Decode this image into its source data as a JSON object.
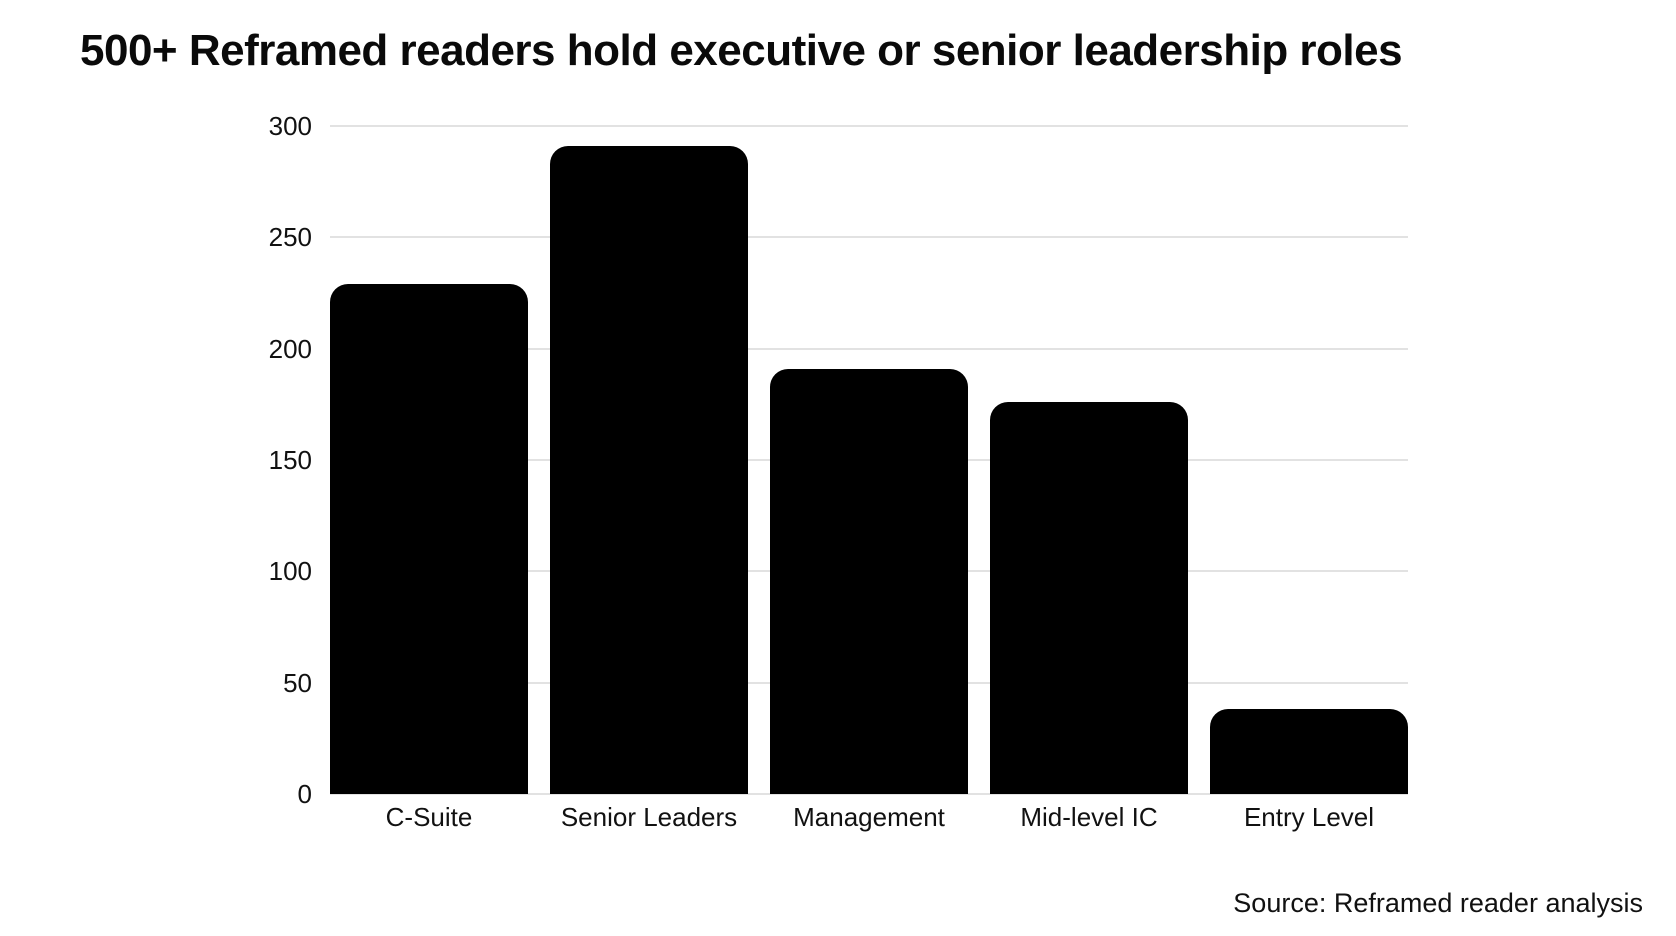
{
  "chart_data": {
    "type": "bar",
    "title": "500+ Reframed readers hold executive or senior leadership roles",
    "categories": [
      "C-Suite",
      "Senior Leaders",
      "Management",
      "Mid-level IC",
      "Entry Level"
    ],
    "values": [
      229,
      291,
      191,
      176,
      38
    ],
    "xlabel": "",
    "ylabel": "",
    "ylim": [
      0,
      300
    ],
    "yticks": [
      0,
      50,
      100,
      150,
      200,
      250,
      300
    ],
    "grid": true,
    "legend": false,
    "bar_color": "#000000",
    "gridline_color": "#e2e2e2",
    "text_color": "#111111",
    "background": "#ffffff",
    "source": "Source: Reframed reader analysis"
  }
}
